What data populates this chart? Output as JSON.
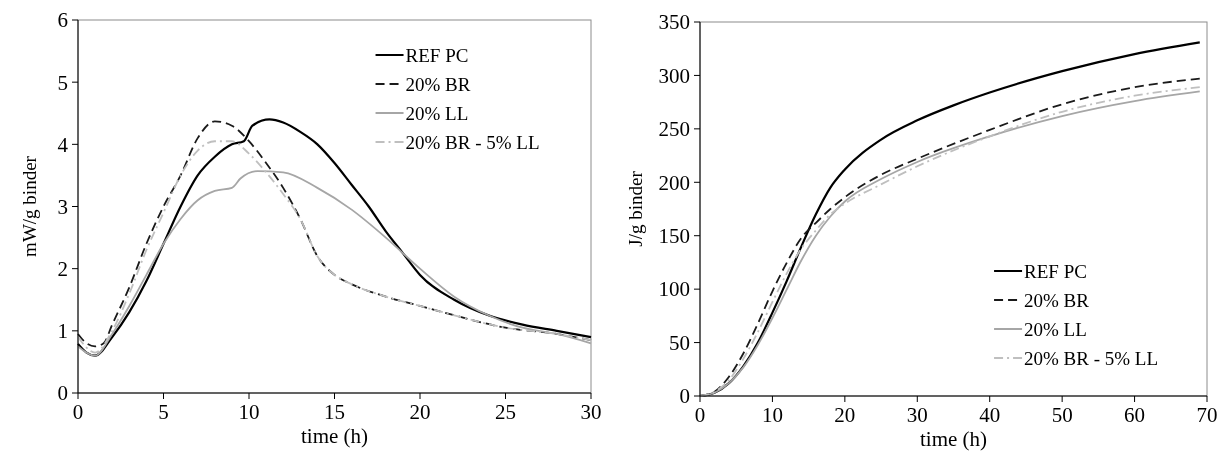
{
  "chart_data": [
    {
      "type": "line",
      "xlabel": "time (h)",
      "ylabel": "mW/g binder",
      "xlim": [
        0,
        30
      ],
      "xticks": [
        0,
        5,
        10,
        15,
        20,
        25,
        30
      ],
      "ylim": [
        0,
        6
      ],
      "yticks": [
        0,
        1,
        2,
        3,
        4,
        5,
        6
      ],
      "legend": "top right",
      "grid": false,
      "series": [
        {
          "name": "REF PC",
          "color": "#000000",
          "line_style": "solid",
          "x": [
            0,
            0.5,
            1,
            2,
            3,
            4,
            5,
            6,
            7,
            8,
            9,
            9.7,
            10.2,
            11.2,
            12,
            13,
            14,
            15,
            16,
            17,
            18,
            19,
            20,
            22,
            24,
            26,
            28,
            30
          ],
          "values": [
            0.79,
            0.65,
            0.6,
            0.9,
            1.3,
            1.8,
            2.4,
            3.0,
            3.5,
            3.8,
            4.0,
            4.05,
            4.3,
            4.4,
            4.35,
            4.2,
            4.0,
            3.7,
            3.35,
            3.0,
            2.6,
            2.25,
            1.9,
            1.5,
            1.25,
            1.1,
            1.0,
            0.9
          ]
        },
        {
          "name": "20% BR",
          "color": "#1a1a1a",
          "line_style": "dashed",
          "x": [
            0,
            0.5,
            1,
            1.5,
            2,
            3,
            4,
            5,
            6,
            7,
            8,
            9,
            10,
            11,
            12,
            13,
            14,
            15,
            16,
            18,
            20,
            22,
            25,
            28,
            30
          ],
          "values": [
            0.95,
            0.8,
            0.75,
            0.8,
            1.1,
            1.7,
            2.4,
            3.0,
            3.5,
            4.1,
            4.37,
            4.3,
            4.05,
            3.7,
            3.3,
            2.8,
            2.2,
            1.9,
            1.75,
            1.55,
            1.4,
            1.25,
            1.05,
            0.95,
            0.85
          ]
        },
        {
          "name": "20% LL",
          "color": "#a6a6a6",
          "line_style": "solid",
          "x": [
            0,
            1,
            2,
            3,
            4,
            5,
            6,
            7,
            8,
            9,
            9.5,
            10.5,
            12,
            14,
            16,
            18,
            20,
            22,
            24,
            26,
            28,
            30
          ],
          "values": [
            0.75,
            0.6,
            0.95,
            1.4,
            1.9,
            2.4,
            2.8,
            3.1,
            3.25,
            3.3,
            3.45,
            3.57,
            3.55,
            3.3,
            2.95,
            2.5,
            2.0,
            1.55,
            1.25,
            1.05,
            0.95,
            0.8
          ]
        },
        {
          "name": "20% BR - 5% LL",
          "color": "#bfbfbf",
          "line_style": "dashdot",
          "x": [
            0,
            1,
            2,
            3,
            4,
            5,
            6,
            7,
            8,
            9,
            10,
            11,
            12,
            13,
            14,
            15,
            16,
            18,
            20,
            22,
            25,
            28,
            30
          ],
          "values": [
            0.9,
            0.65,
            1.0,
            1.6,
            2.3,
            2.9,
            3.5,
            3.9,
            4.05,
            4.05,
            3.85,
            3.55,
            3.2,
            2.8,
            2.2,
            1.9,
            1.75,
            1.55,
            1.4,
            1.25,
            1.05,
            0.95,
            0.85
          ]
        }
      ]
    },
    {
      "type": "line",
      "xlabel": "time (h)",
      "ylabel": "J/g binder",
      "xlim": [
        0,
        70
      ],
      "xticks": [
        0,
        10,
        20,
        30,
        40,
        50,
        60,
        70
      ],
      "ylim": [
        0,
        350
      ],
      "yticks": [
        0,
        50,
        100,
        150,
        200,
        250,
        300,
        350
      ],
      "legend": "bottom right",
      "grid": false,
      "series": [
        {
          "name": "REF PC",
          "color": "#000000",
          "line_style": "solid",
          "x": [
            0,
            2,
            4,
            6,
            8,
            10,
            12,
            14,
            16,
            18,
            20,
            25,
            30,
            35,
            40,
            50,
            60,
            69
          ],
          "values": [
            0,
            3,
            12,
            28,
            50,
            78,
            108,
            140,
            170,
            195,
            212,
            240,
            258,
            272,
            284,
            304,
            320,
            331
          ]
        },
        {
          "name": "20% BR",
          "color": "#1a1a1a",
          "line_style": "dashed",
          "x": [
            0,
            2,
            4,
            6,
            8,
            10,
            12,
            14,
            16,
            18,
            20,
            25,
            30,
            40,
            50,
            60,
            69
          ],
          "values": [
            0,
            4,
            18,
            40,
            68,
            98,
            125,
            148,
            162,
            175,
            186,
            207,
            222,
            249,
            273,
            289,
            297
          ]
        },
        {
          "name": "20% LL",
          "color": "#a6a6a6",
          "line_style": "solid",
          "x": [
            0,
            2,
            4,
            6,
            8,
            10,
            12,
            14,
            16,
            18,
            20,
            25,
            30,
            40,
            50,
            60,
            69
          ],
          "values": [
            0,
            3,
            12,
            27,
            48,
            73,
            100,
            127,
            150,
            168,
            182,
            203,
            219,
            243,
            262,
            276,
            285
          ]
        },
        {
          "name": "20% BR - 5% LL",
          "color": "#bfbfbf",
          "line_style": "dashdot",
          "x": [
            0,
            2,
            4,
            6,
            8,
            10,
            12,
            14,
            16,
            18,
            20,
            25,
            30,
            40,
            50,
            60,
            69
          ],
          "values": [
            0,
            4,
            15,
            35,
            60,
            88,
            115,
            138,
            155,
            170,
            180,
            198,
            215,
            243,
            266,
            281,
            289
          ]
        }
      ]
    }
  ]
}
